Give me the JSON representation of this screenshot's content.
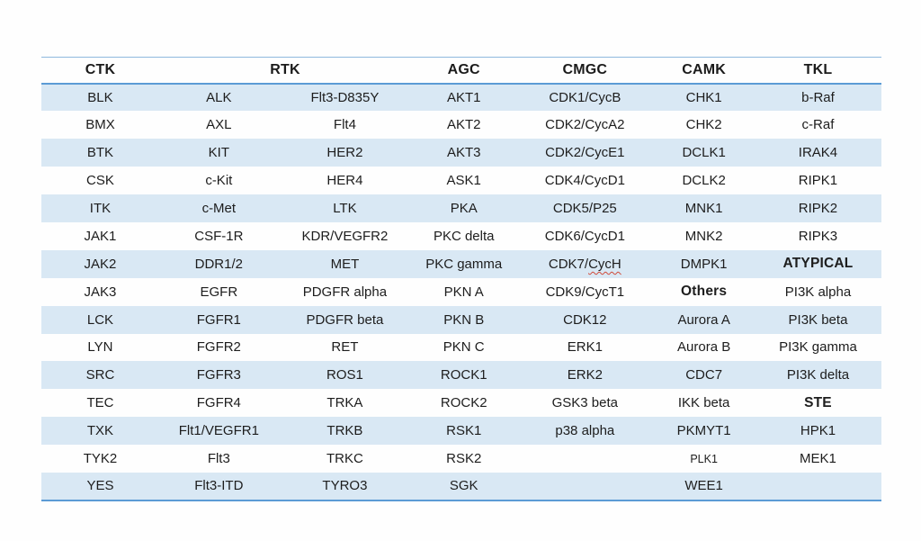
{
  "colors": {
    "stripe": "#d9e8f4",
    "rule_blue": "#5b9bd5",
    "thin_rule_blue": "#8fb8de",
    "text": "#1d1d1d",
    "squiggle_red": "#d04a3a",
    "background": "#fefefe"
  },
  "table": {
    "headers": [
      {
        "label": "CTK",
        "span": 1
      },
      {
        "label": "RTK",
        "span": 2
      },
      {
        "label": "AGC",
        "span": 1
      },
      {
        "label": "CMGC",
        "span": 1
      },
      {
        "label": "CAMK",
        "span": 1
      },
      {
        "label": "TKL",
        "span": 1
      }
    ],
    "col_widths_pct": [
      14.3,
      14.5,
      16.1,
      12.8,
      16.6,
      12.3,
      15.4
    ],
    "rows": [
      [
        "BLK",
        "ALK",
        "Flt3-D835Y",
        "AKT1",
        "CDK1/CycB",
        "CHK1",
        "b-Raf"
      ],
      [
        "BMX",
        "AXL",
        "Flt4",
        "AKT2",
        "CDK2/CycA2",
        "CHK2",
        "c-Raf"
      ],
      [
        "BTK",
        "KIT",
        "HER2",
        "AKT3",
        "CDK2/CycE1",
        "DCLK1",
        "IRAK4"
      ],
      [
        "CSK",
        "c-Kit",
        "HER4",
        "ASK1",
        "CDK4/CycD1",
        "DCLK2",
        "RIPK1"
      ],
      [
        "ITK",
        "c-Met",
        "LTK",
        "PKA",
        "CDK5/P25",
        "MNK1",
        "RIPK2"
      ],
      [
        "JAK1",
        "CSF-1R",
        "KDR/VEGFR2",
        "PKC delta",
        "CDK6/CycD1",
        "MNK2",
        "RIPK3"
      ],
      [
        "JAK2",
        "DDR1/2",
        "MET",
        "PKC gamma",
        {
          "text": "CDK7/CycH",
          "squiggle": "CycH"
        },
        "DMPK1",
        {
          "text": "ATYPICAL",
          "bold": true
        }
      ],
      [
        "JAK3",
        "EGFR",
        "PDGFR alpha",
        "PKN A",
        "CDK9/CycT1",
        {
          "text": "Others",
          "bold": true
        },
        "PI3K alpha"
      ],
      [
        "LCK",
        "FGFR1",
        "PDGFR beta",
        "PKN B",
        "CDK12",
        "Aurora A",
        "PI3K beta"
      ],
      [
        "LYN",
        "FGFR2",
        "RET",
        "PKN C",
        "ERK1",
        "Aurora B",
        "PI3K gamma"
      ],
      [
        "SRC",
        "FGFR3",
        "ROS1",
        "ROCK1",
        "ERK2",
        "CDC7",
        "PI3K delta"
      ],
      [
        "TEC",
        "FGFR4",
        "TRKA",
        "ROCK2",
        "GSK3 beta",
        "IKK beta",
        {
          "text": "STE",
          "bold": true
        }
      ],
      [
        "TXK",
        "Flt1/VEGFR1",
        "TRKB",
        "RSK1",
        "p38 alpha",
        "PKMYT1",
        "HPK1"
      ],
      [
        "TYK2",
        "Flt3",
        "TRKC",
        "RSK2",
        "",
        {
          "text": "PLK1",
          "small": true
        },
        "MEK1"
      ],
      [
        "YES",
        "Flt3-ITD",
        "TYRO3",
        "SGK",
        "",
        "WEE1",
        ""
      ]
    ]
  }
}
